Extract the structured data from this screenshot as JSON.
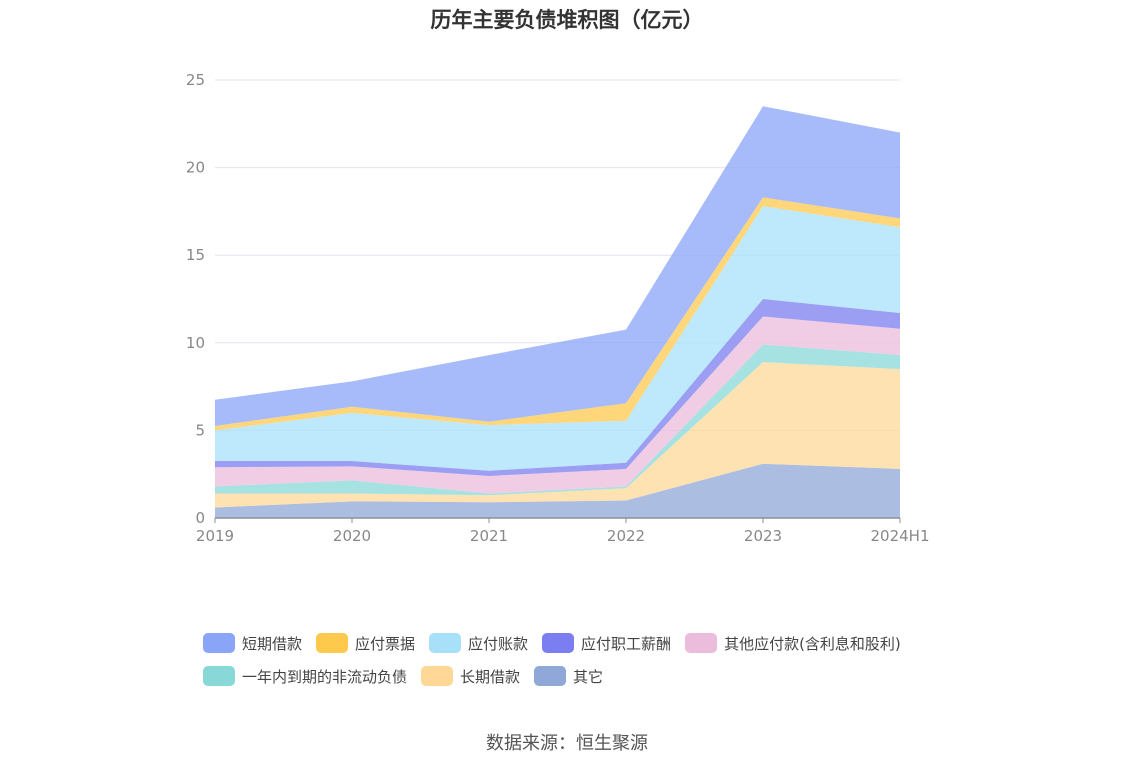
{
  "chart_data": {
    "type": "area",
    "stacked": true,
    "title": "历年主要负债堆积图（亿元）",
    "x": [
      "2019",
      "2020",
      "2021",
      "2022",
      "2023",
      "2024H1"
    ],
    "ylim": [
      0,
      25
    ],
    "yticks": [
      0,
      5,
      10,
      15,
      20,
      25
    ],
    "grid": true,
    "legend_position": "bottom",
    "series": [
      {
        "name": "其它",
        "color": "#8fa8d8",
        "values": [
          0.6,
          0.95,
          0.9,
          1.0,
          3.1,
          2.8
        ]
      },
      {
        "name": "长期借款",
        "color": "#ffd898",
        "values": [
          0.8,
          0.45,
          0.4,
          0.7,
          5.8,
          5.7
        ]
      },
      {
        "name": "一年内到期的非流动负债",
        "color": "#88d8d8",
        "values": [
          0.4,
          0.75,
          0.1,
          0.1,
          1.0,
          0.8
        ]
      },
      {
        "name": "其他应付款(含利息和股利)",
        "color": "#ecbcdc",
        "values": [
          1.1,
          0.8,
          1.0,
          1.0,
          1.6,
          1.5
        ]
      },
      {
        "name": "应付职工薪酬",
        "color": "#7b7ef0",
        "values": [
          0.35,
          0.3,
          0.3,
          0.35,
          1.0,
          0.9
        ]
      },
      {
        "name": "应付账款",
        "color": "#a8e0fa",
        "values": [
          1.75,
          2.75,
          2.6,
          2.4,
          5.3,
          4.9
        ]
      },
      {
        "name": "应付票据",
        "color": "#ffc94d",
        "values": [
          0.25,
          0.35,
          0.2,
          1.0,
          0.5,
          0.5
        ]
      },
      {
        "name": "短期借款",
        "color": "#8aa4f8",
        "values": [
          1.5,
          1.45,
          3.8,
          4.2,
          5.2,
          4.9
        ]
      }
    ]
  },
  "legend": {
    "row1": [
      "短期借款",
      "应付票据",
      "应付账款",
      "应付职工薪酬",
      "其他应付款(含利息和股利)"
    ],
    "row2": [
      "一年内到期的非流动负债",
      "长期借款",
      "其它"
    ],
    "colors_row1": [
      "#8aa4f8",
      "#ffc94d",
      "#a8e0fa",
      "#7b7ef0",
      "#ecbcdc"
    ],
    "colors_row2": [
      "#88d8d8",
      "#ffd898",
      "#8fa8d8"
    ]
  },
  "source": "数据来源：恒生聚源"
}
